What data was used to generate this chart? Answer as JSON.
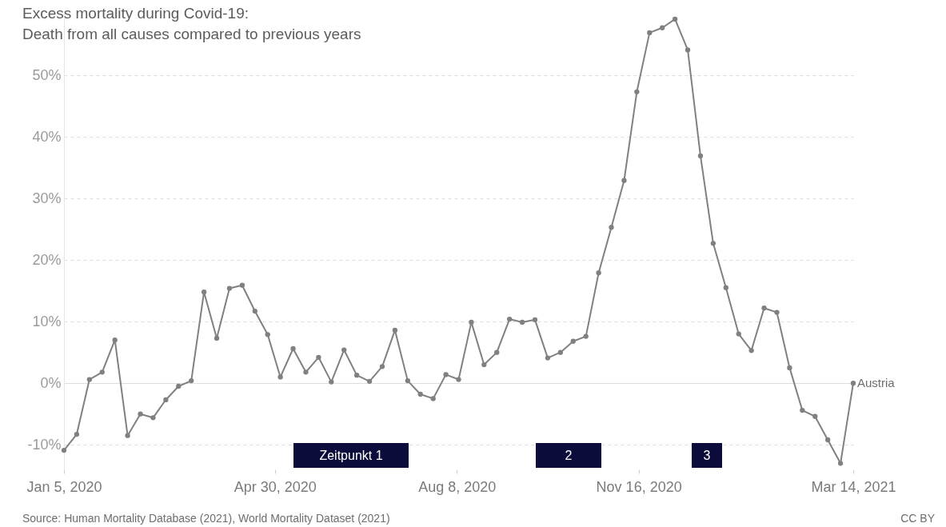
{
  "chart_data": {
    "type": "line",
    "title": "Excess mortality during Covid-19:",
    "subtitle": "Death from all causes compared to previous years",
    "x": [
      "2020-01-05",
      "2020-01-12",
      "2020-01-19",
      "2020-01-26",
      "2020-02-02",
      "2020-02-09",
      "2020-02-16",
      "2020-02-23",
      "2020-03-01",
      "2020-03-08",
      "2020-03-15",
      "2020-03-22",
      "2020-03-29",
      "2020-04-05",
      "2020-04-12",
      "2020-04-19",
      "2020-04-26",
      "2020-05-03",
      "2020-05-10",
      "2020-05-17",
      "2020-05-24",
      "2020-05-31",
      "2020-06-07",
      "2020-06-14",
      "2020-06-21",
      "2020-06-28",
      "2020-07-05",
      "2020-07-12",
      "2020-07-19",
      "2020-07-26",
      "2020-08-02",
      "2020-08-09",
      "2020-08-16",
      "2020-08-23",
      "2020-08-30",
      "2020-09-06",
      "2020-09-13",
      "2020-09-20",
      "2020-09-27",
      "2020-10-04",
      "2020-10-11",
      "2020-10-18",
      "2020-10-25",
      "2020-11-01",
      "2020-11-08",
      "2020-11-15",
      "2020-11-22",
      "2020-11-29",
      "2020-12-06",
      "2020-12-13",
      "2020-12-20",
      "2020-12-27",
      "2021-01-03",
      "2021-01-10",
      "2021-01-17",
      "2021-01-24",
      "2021-01-31",
      "2021-02-07",
      "2021-02-14",
      "2021-02-21",
      "2021-02-28",
      "2021-03-07",
      "2021-03-14"
    ],
    "series": [
      {
        "name": "Austria",
        "color": "#808080",
        "values": [
          -10.9,
          -8.3,
          0.6,
          1.8,
          7.0,
          -8.5,
          -5.0,
          -5.6,
          -2.7,
          -0.5,
          0.4,
          14.8,
          7.3,
          15.4,
          15.9,
          11.7,
          7.9,
          1.0,
          5.6,
          1.8,
          4.2,
          0.2,
          5.4,
          1.3,
          0.3,
          2.7,
          8.6,
          0.4,
          -1.8,
          -2.5,
          1.4,
          0.6,
          9.9,
          3.0,
          5.0,
          10.4,
          9.9,
          10.3,
          4.1,
          5.0,
          6.8,
          7.6,
          17.9,
          25.3,
          32.9,
          47.3,
          56.9,
          57.7,
          59.1,
          54.1,
          36.9,
          22.7,
          15.5,
          8.0,
          5.3,
          12.2,
          11.5,
          2.5,
          -4.4,
          -5.4,
          -9.2,
          -13.0,
          0.0
        ]
      }
    ],
    "xlim": [
      "2020-01-05",
      "2021-03-14"
    ],
    "xticks": [
      {
        "value": "2020-01-05",
        "label": "Jan 5, 2020"
      },
      {
        "value": "2020-04-30",
        "label": "Apr 30, 2020"
      },
      {
        "value": "2020-08-08",
        "label": "Aug 8, 2020"
      },
      {
        "value": "2020-11-16",
        "label": "Nov 16, 2020"
      },
      {
        "value": "2021-03-14",
        "label": "Mar 14, 2021"
      }
    ],
    "ylim": [
      -14,
      60
    ],
    "yticks": [
      {
        "value": -10,
        "label": "-10%"
      },
      {
        "value": 0,
        "label": "0%"
      },
      {
        "value": 10,
        "label": "10%"
      },
      {
        "value": 20,
        "label": "20%"
      },
      {
        "value": 30,
        "label": "30%"
      },
      {
        "value": 40,
        "label": "40%"
      },
      {
        "value": 50,
        "label": "50%"
      }
    ],
    "grid": "y",
    "marker": "circle",
    "annotations": [
      "Zeitpunkt 1",
      "2",
      "3",
      "Source: Human Mortality Database (2021), World Mortality Dataset (2021)",
      "CC BY"
    ]
  }
}
